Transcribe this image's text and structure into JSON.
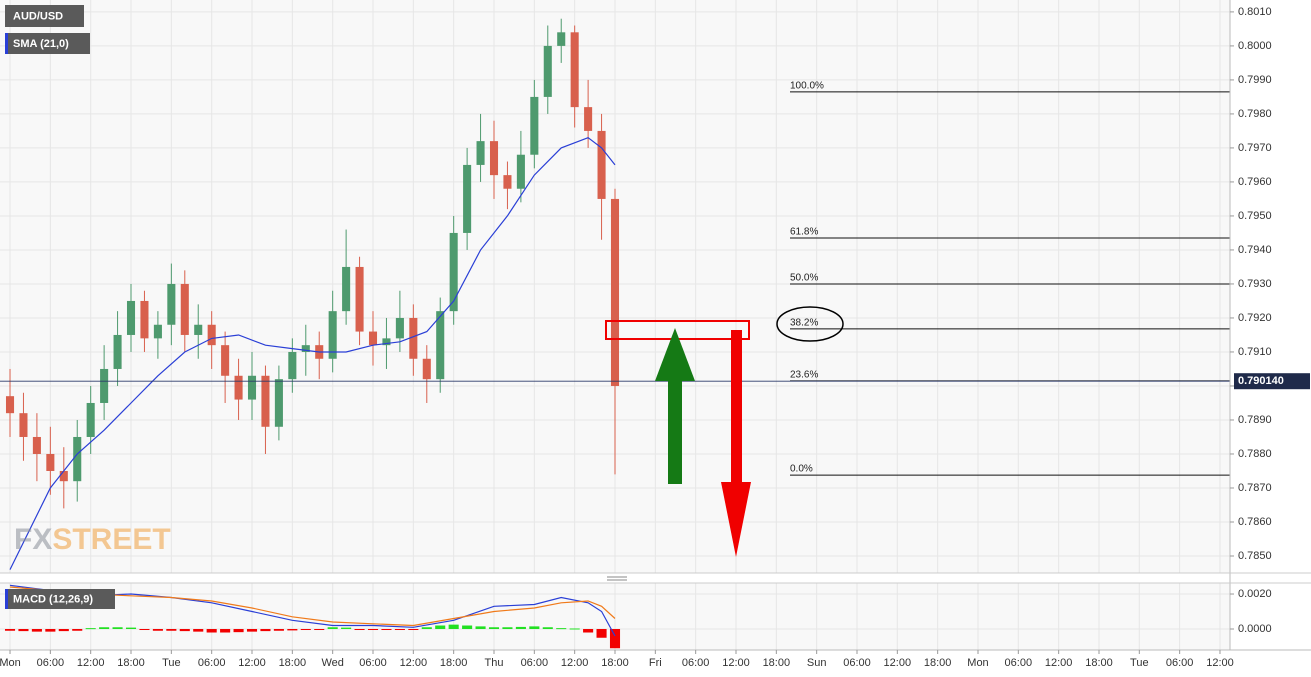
{
  "chart_data": [
    {
      "type": "candlestick",
      "title": "AUD/USD",
      "x": [
        0,
        2,
        4,
        6,
        8,
        10,
        12,
        14,
        16,
        18,
        20,
        22,
        24,
        26,
        28,
        30,
        32,
        34,
        36,
        38,
        40,
        42,
        44,
        46,
        48,
        50,
        52,
        54,
        56,
        58,
        60,
        62,
        64,
        66,
        68,
        70,
        72,
        74,
        76,
        78,
        80,
        82,
        84,
        86,
        88,
        90
      ],
      "open": [
        0.7897,
        0.7892,
        0.7885,
        0.788,
        0.7875,
        0.7872,
        0.7885,
        0.7895,
        0.7905,
        0.7915,
        0.7925,
        0.7914,
        0.7918,
        0.793,
        0.7915,
        0.7918,
        0.7912,
        0.7903,
        0.7896,
        0.7903,
        0.7888,
        0.7902,
        0.791,
        0.7912,
        0.7908,
        0.7922,
        0.7935,
        0.7916,
        0.7912,
        0.7914,
        0.792,
        0.7908,
        0.7902,
        0.7922,
        0.7945,
        0.7965,
        0.7972,
        0.7962,
        0.7958,
        0.7968,
        0.7985,
        0.8,
        0.8004,
        0.7982,
        0.7975,
        0.7955
      ],
      "high": [
        0.7905,
        0.7898,
        0.7892,
        0.7888,
        0.7882,
        0.789,
        0.79,
        0.7912,
        0.7922,
        0.793,
        0.7928,
        0.7922,
        0.7936,
        0.7934,
        0.7924,
        0.7922,
        0.7916,
        0.7908,
        0.791,
        0.7906,
        0.7906,
        0.7914,
        0.7918,
        0.7916,
        0.7928,
        0.7946,
        0.7938,
        0.7922,
        0.792,
        0.7928,
        0.7924,
        0.7912,
        0.7926,
        0.795,
        0.797,
        0.798,
        0.7978,
        0.7966,
        0.7975,
        0.799,
        0.8006,
        0.8008,
        0.8006,
        0.799,
        0.798,
        0.7958
      ],
      "low": [
        0.7885,
        0.7878,
        0.7872,
        0.7868,
        0.7864,
        0.7866,
        0.788,
        0.789,
        0.79,
        0.791,
        0.791,
        0.7908,
        0.7912,
        0.791,
        0.7908,
        0.7905,
        0.7895,
        0.789,
        0.789,
        0.788,
        0.7884,
        0.7898,
        0.7903,
        0.7902,
        0.7904,
        0.7918,
        0.7912,
        0.7906,
        0.7905,
        0.791,
        0.7903,
        0.7895,
        0.7898,
        0.7918,
        0.794,
        0.796,
        0.7955,
        0.7952,
        0.7954,
        0.7964,
        0.798,
        0.7995,
        0.7976,
        0.797,
        0.7943,
        0.7874
      ],
      "close": [
        0.7892,
        0.7885,
        0.788,
        0.7875,
        0.7872,
        0.7885,
        0.7895,
        0.7905,
        0.7915,
        0.7925,
        0.7914,
        0.7918,
        0.793,
        0.7915,
        0.7918,
        0.7912,
        0.7903,
        0.7896,
        0.7903,
        0.7888,
        0.7902,
        0.791,
        0.7912,
        0.7908,
        0.7922,
        0.7935,
        0.7916,
        0.7912,
        0.7914,
        0.792,
        0.7908,
        0.7902,
        0.7922,
        0.7945,
        0.7965,
        0.7972,
        0.7962,
        0.7958,
        0.7968,
        0.7985,
        0.8,
        0.8004,
        0.7982,
        0.7975,
        0.7955,
        0.79
      ],
      "up_color": "#4e9a6e",
      "down_color": "#d8604d",
      "series": [
        {
          "name": "SMA (21,0)",
          "color": "#2a3fd6",
          "x": [
            0,
            6,
            10,
            14,
            18,
            22,
            26,
            30,
            34,
            38,
            42,
            46,
            50,
            54,
            58,
            62,
            66,
            70,
            74,
            78,
            82,
            86,
            88,
            90
          ],
          "values": [
            0.7846,
            0.787,
            0.788,
            0.7887,
            0.7895,
            0.7903,
            0.791,
            0.7914,
            0.7915,
            0.7912,
            0.7911,
            0.791,
            0.791,
            0.7912,
            0.7913,
            0.7916,
            0.7925,
            0.794,
            0.795,
            0.7962,
            0.797,
            0.7973,
            0.797,
            0.7965
          ]
        }
      ],
      "xlim": [
        -1.49,
        181.49
      ],
      "ylim": [
        0.7845,
        0.80135
      ],
      "yticks": [
        {
          "value": 0.801,
          "label": "0.8010"
        },
        {
          "value": 0.8,
          "label": "0.8000"
        },
        {
          "value": 0.799,
          "label": "0.7990"
        },
        {
          "value": 0.798,
          "label": "0.7980"
        },
        {
          "value": 0.797,
          "label": "0.7970"
        },
        {
          "value": 0.796,
          "label": "0.7960"
        },
        {
          "value": 0.795,
          "label": "0.7950"
        },
        {
          "value": 0.794,
          "label": "0.7940"
        },
        {
          "value": 0.793,
          "label": "0.7930"
        },
        {
          "value": 0.792,
          "label": "0.7920"
        },
        {
          "value": 0.791,
          "label": "0.7910"
        },
        {
          "value": 0.79,
          "label": "0.7900"
        },
        {
          "value": 0.789,
          "label": "0.7890"
        },
        {
          "value": 0.788,
          "label": "0.7880"
        },
        {
          "value": 0.787,
          "label": "0.7870"
        },
        {
          "value": 0.786,
          "label": "0.7860"
        },
        {
          "value": 0.785,
          "label": "0.7850"
        }
      ],
      "current_price": {
        "value": 0.79014,
        "label": "0.790140"
      },
      "fib_levels": [
        {
          "value": 0.79865,
          "label": "100.0%"
        },
        {
          "value": 0.79435,
          "label": "61.8%"
        },
        {
          "value": 0.793,
          "label": "50.0%"
        },
        {
          "value": 0.79168,
          "label": "38.2%"
        },
        {
          "value": 0.79015,
          "label": "23.6%"
        },
        {
          "value": 0.78738,
          "label": "0.0%"
        }
      ],
      "watermark": [
        "FX",
        "STREET"
      ],
      "grid": true
    },
    {
      "type": "macd",
      "title": "MACD (12,26,9)",
      "x": [
        0,
        2,
        4,
        6,
        8,
        10,
        12,
        14,
        16,
        18,
        20,
        22,
        24,
        26,
        28,
        30,
        32,
        34,
        36,
        38,
        40,
        42,
        44,
        46,
        48,
        50,
        52,
        54,
        56,
        58,
        60,
        62,
        64,
        66,
        68,
        70,
        72,
        74,
        76,
        78,
        80,
        82,
        84,
        86,
        88,
        90
      ],
      "values": [
        -0.0001,
        -0.00012,
        -0.00015,
        -0.00015,
        -0.00012,
        -0.0001,
        5e-05,
        0.0001,
        0.0001,
        8e-05,
        -5e-05,
        -0.0001,
        -0.0001,
        -0.00012,
        -0.00015,
        -0.0002,
        -0.0002,
        -0.00018,
        -0.00015,
        -0.00012,
        -0.0001,
        -8e-05,
        -5e-05,
        -5e-05,
        0.0001,
        8e-05,
        -3e-05,
        -5e-05,
        -5e-05,
        -4e-05,
        -3e-05,
        0.0001,
        0.0002,
        0.00025,
        0.0002,
        0.00015,
        0.0001,
        0.0001,
        0.00012,
        0.00015,
        0.0001,
        5e-05,
        3e-05,
        -0.0002,
        -0.0005,
        -0.0011
      ],
      "up_color": "#22e022",
      "down_color": "#f20000",
      "series": [
        {
          "color": "#2a3fd6",
          "x": [
            0,
            6,
            12,
            18,
            24,
            30,
            36,
            42,
            48,
            54,
            60,
            66,
            72,
            78,
            82,
            86,
            88,
            90
          ],
          "values": [
            0.0025,
            0.0022,
            0.0019,
            0.002,
            0.0018,
            0.0015,
            0.001,
            0.0005,
            0.0002,
            0.0002,
            0.0001,
            0.0005,
            0.0013,
            0.0014,
            0.0018,
            0.0015,
            0.001,
            -0.0004
          ]
        },
        {
          "color": "#f07a1a",
          "x": [
            0,
            6,
            12,
            18,
            24,
            30,
            36,
            42,
            48,
            54,
            60,
            66,
            72,
            78,
            82,
            86,
            88,
            90
          ],
          "values": [
            0.0024,
            0.0022,
            0.002,
            0.0019,
            0.0018,
            0.0016,
            0.0012,
            0.0007,
            0.0004,
            0.0003,
            0.0002,
            0.0006,
            0.001,
            0.0012,
            0.0015,
            0.0016,
            0.0013,
            0.0006
          ]
        }
      ],
      "xlim": [
        -1.49,
        181.49
      ],
      "ylim": [
        -0.0012,
        0.00263
      ],
      "yticks": [
        {
          "value": 0.002,
          "label": "0.0020"
        },
        {
          "value": 0,
          "label": "0.0000"
        }
      ],
      "xticks": [
        {
          "value": 0,
          "label": "Mon"
        },
        {
          "value": 6,
          "label": "06:00"
        },
        {
          "value": 12,
          "label": "12:00"
        },
        {
          "value": 18,
          "label": "18:00"
        },
        {
          "value": 24,
          "label": "Tue"
        },
        {
          "value": 30,
          "label": "06:00"
        },
        {
          "value": 36,
          "label": "12:00"
        },
        {
          "value": 42,
          "label": "18:00"
        },
        {
          "value": 48,
          "label": "Wed"
        },
        {
          "value": 54,
          "label": "06:00"
        },
        {
          "value": 60,
          "label": "12:00"
        },
        {
          "value": 66,
          "label": "18:00"
        },
        {
          "value": 72,
          "label": "Thu"
        },
        {
          "value": 78,
          "label": "06:00"
        },
        {
          "value": 84,
          "label": "12:00"
        },
        {
          "value": 90,
          "label": "18:00"
        },
        {
          "value": 96,
          "label": "Fri"
        },
        {
          "value": 102,
          "label": "06:00"
        },
        {
          "value": 108,
          "label": "12:00"
        },
        {
          "value": 114,
          "label": "18:00"
        },
        {
          "value": 120,
          "label": "Sun"
        },
        {
          "value": 126,
          "label": "06:00"
        },
        {
          "value": 132,
          "label": "12:00"
        },
        {
          "value": 138,
          "label": "18:00"
        },
        {
          "value": 144,
          "label": "Mon"
        },
        {
          "value": 150,
          "label": "06:00"
        },
        {
          "value": 156,
          "label": "12:00"
        },
        {
          "value": 162,
          "label": "18:00"
        },
        {
          "value": 168,
          "label": "Tue"
        },
        {
          "value": 174,
          "label": "06:00"
        },
        {
          "value": 180,
          "label": "12:00"
        }
      ],
      "grid": true
    }
  ]
}
